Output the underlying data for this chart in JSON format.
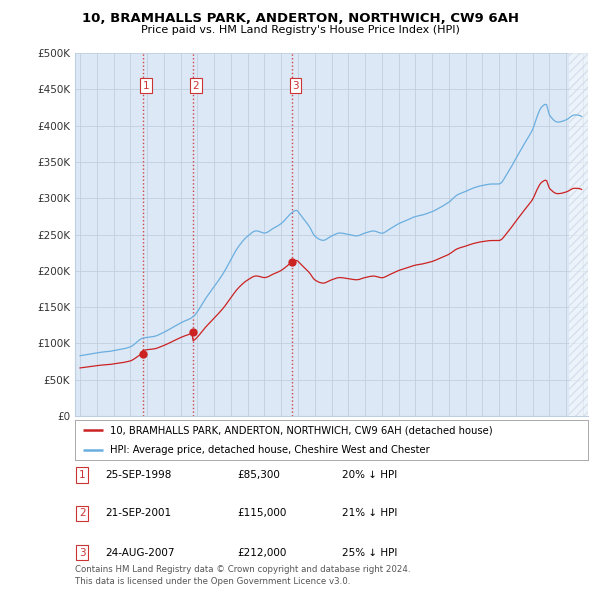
{
  "title": "10, BRAMHALLS PARK, ANDERTON, NORTHWICH, CW9 6AH",
  "subtitle": "Price paid vs. HM Land Registry's House Price Index (HPI)",
  "background_color": "#ffffff",
  "plot_bg_color": "#dce8f5",
  "grid_color": "#c0cfe0",
  "hpi_color": "#6aaee0",
  "price_color": "#cc2222",
  "shade_color": "#dce8f5",
  "hatch_color": "#c0cfe0",
  "ylim": [
    0,
    500000
  ],
  "yticks": [
    0,
    50000,
    100000,
    150000,
    200000,
    250000,
    300000,
    350000,
    400000,
    450000,
    500000
  ],
  "ytick_labels": [
    "£0",
    "£50K",
    "£100K",
    "£150K",
    "£200K",
    "£250K",
    "£300K",
    "£350K",
    "£400K",
    "£450K",
    "£500K"
  ],
  "sale_dates_num": [
    1998.73,
    2001.72,
    2007.65
  ],
  "sale_prices": [
    85300,
    115000,
    212000
  ],
  "sale_labels": [
    "1",
    "2",
    "3"
  ],
  "vline_color": "#cc3333",
  "legend_entries": [
    "10, BRAMHALLS PARK, ANDERTON, NORTHWICH, CW9 6AH (detached house)",
    "HPI: Average price, detached house, Cheshire West and Chester"
  ],
  "table_rows": [
    [
      "1",
      "25-SEP-1998",
      "£85,300",
      "20% ↓ HPI"
    ],
    [
      "2",
      "21-SEP-2001",
      "£115,000",
      "21% ↓ HPI"
    ],
    [
      "3",
      "24-AUG-2007",
      "£212,000",
      "25% ↓ HPI"
    ]
  ],
  "footer": "Contains HM Land Registry data © Crown copyright and database right 2024.\nThis data is licensed under the Open Government Licence v3.0.",
  "xlim_start": 1994.7,
  "xlim_end": 2025.3
}
